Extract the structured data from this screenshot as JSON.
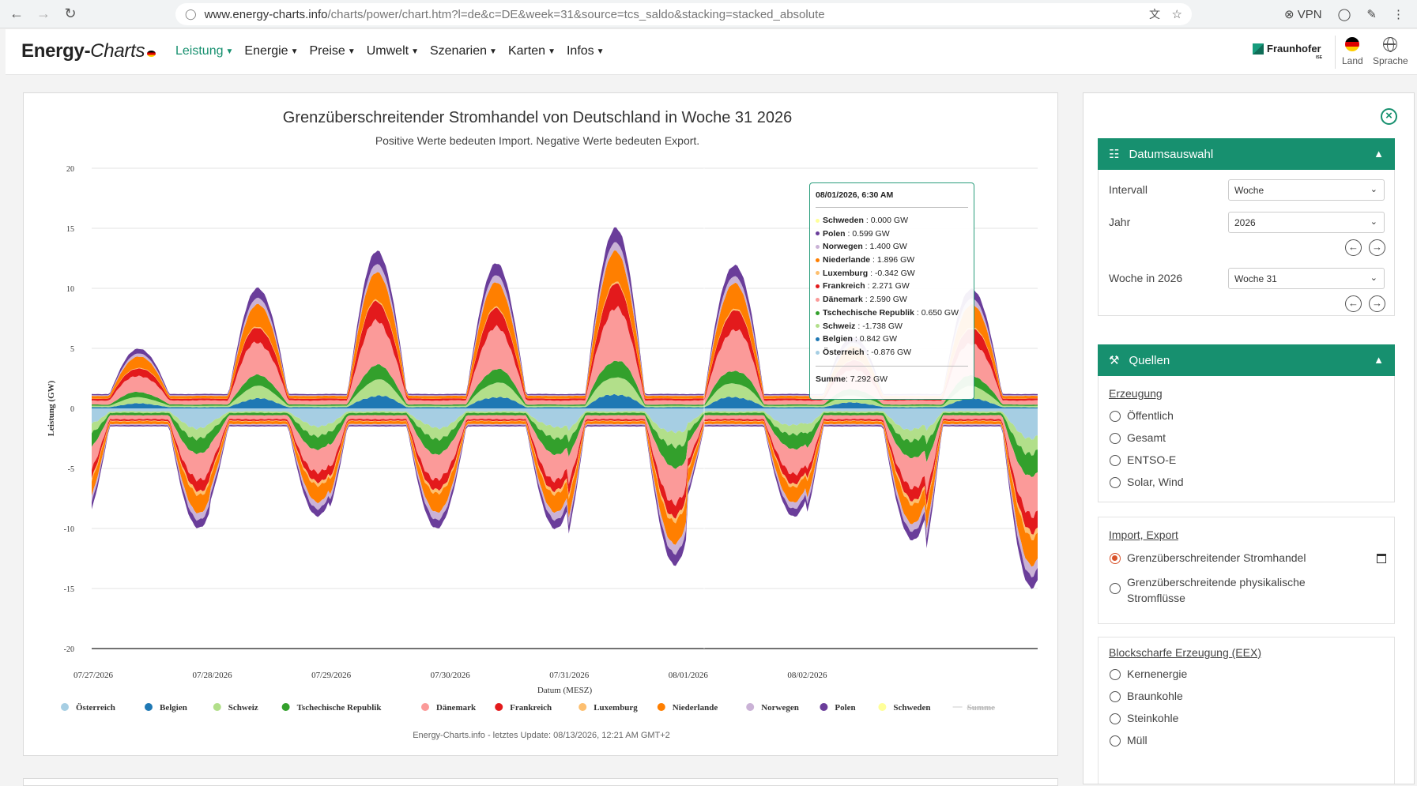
{
  "browser": {
    "url_host": "www.energy-charts.info",
    "url_path": "/charts/power/chart.htm?l=de&c=DE&week=31&source=tcs_saldo&stacking=stacked_absolute",
    "vpn_label": "VPN"
  },
  "header": {
    "logo_main": "Energy-",
    "logo_italic": "Charts",
    "menu": [
      {
        "label": "Leistung"
      },
      {
        "label": "Energie"
      },
      {
        "label": "Preise"
      },
      {
        "label": "Umwelt"
      },
      {
        "label": "Szenarien"
      },
      {
        "label": "Karten"
      },
      {
        "label": "Infos"
      }
    ],
    "fraunhofer": "Fraunhofer",
    "fraunhofer_sub": "ISE",
    "land_label": "Land",
    "sprache_label": "Sprache"
  },
  "chart": {
    "title": "Grenzüberschreitender Stromhandel von Deutschland in Woche 31 2026",
    "subtitle": "Positive Werte bedeuten Import. Negative Werte bedeuten Export.",
    "footer": "Energy-Charts.info - letztes Update: 08/13/2026, 12:21 AM GMT+2"
  },
  "chart_data": {
    "type": "area",
    "stacking": "stacked_absolute",
    "ylabel": "Leistung (GW)",
    "xlabel": "Datum (MESZ)",
    "ylim": [
      -20,
      20
    ],
    "yticks": [
      20,
      15,
      10,
      5,
      0,
      -5,
      -10,
      -15,
      -20
    ],
    "xticks": [
      "07/27/2026",
      "07/28/2026",
      "07/29/2026",
      "07/30/2026",
      "07/31/2026",
      "08/01/2026",
      "08/02/2026"
    ],
    "legend_position": "bottom",
    "series": [
      {
        "name": "Österreich",
        "color": "#a6cee3"
      },
      {
        "name": "Belgien",
        "color": "#1f78b4"
      },
      {
        "name": "Schweiz",
        "color": "#b2df8a"
      },
      {
        "name": "Tschechische Republik",
        "color": "#33a02c"
      },
      {
        "name": "Dänemark",
        "color": "#fb9a99"
      },
      {
        "name": "Frankreich",
        "color": "#e31a1c"
      },
      {
        "name": "Luxemburg",
        "color": "#fdbf6f"
      },
      {
        "name": "Niederlande",
        "color": "#ff7f00"
      },
      {
        "name": "Norwegen",
        "color": "#cab2d6"
      },
      {
        "name": "Polen",
        "color": "#6a3d9a"
      },
      {
        "name": "Schweden",
        "color": "#ffff99"
      },
      {
        "name": "Summe",
        "color": "#cccccc",
        "hidden": true
      }
    ],
    "daily_profile_gw": {
      "import_peak": [
        5,
        10,
        13,
        12,
        15,
        12,
        6,
        10
      ],
      "export_trough": [
        -10,
        -9,
        -10,
        -10,
        -13,
        -9,
        -11,
        -15
      ]
    },
    "tooltip": {
      "date": "08/01/2026, 6:30 AM",
      "rows": [
        {
          "name": "Schweden",
          "value": "0.000 GW",
          "color": "#ffff99"
        },
        {
          "name": "Polen",
          "value": "0.599 GW",
          "color": "#6a3d9a"
        },
        {
          "name": "Norwegen",
          "value": "1.400 GW",
          "color": "#cab2d6"
        },
        {
          "name": "Niederlande",
          "value": "1.896 GW",
          "color": "#ff7f00"
        },
        {
          "name": "Luxemburg",
          "value": "-0.342 GW",
          "color": "#fdbf6f"
        },
        {
          "name": "Frankreich",
          "value": "2.271 GW",
          "color": "#e31a1c"
        },
        {
          "name": "Dänemark",
          "value": "2.590 GW",
          "color": "#fb9a99"
        },
        {
          "name": "Tschechische Republik",
          "value": "0.650 GW",
          "color": "#33a02c"
        },
        {
          "name": "Schweiz",
          "value": "-1.738 GW",
          "color": "#b2df8a"
        },
        {
          "name": "Belgien",
          "value": "0.842 GW",
          "color": "#1f78b4"
        },
        {
          "name": "Österreich",
          "value": "-0.876 GW",
          "color": "#a6cee3"
        }
      ],
      "sum_label": "Summe",
      "sum_value": "7.292 GW"
    }
  },
  "side": {
    "datum": {
      "title": "Datumsauswahl",
      "intervall_label": "Intervall",
      "intervall_value": "Woche",
      "jahr_label": "Jahr",
      "jahr_value": "2026",
      "woche_label": "Woche in 2026",
      "woche_value": "Woche 31"
    },
    "quellen": {
      "title": "Quellen",
      "erzeugung_title": "Erzeugung",
      "erzeugung": [
        "Öffentlich",
        "Gesamt",
        "ENTSO-E",
        "Solar, Wind"
      ],
      "import_title": "Import, Export",
      "import_selected": "Grenzüberschreitender Stromhandel",
      "import_other_1": "Grenzüberschreitende physikalische",
      "import_other_2": "Stromflüsse",
      "eex_title": "Blockscharfe Erzeugung (EEX)",
      "eex": [
        "Kernenergie",
        "Braunkohle",
        "Steinkohle",
        "Müll"
      ]
    }
  },
  "colors": {
    "accent": "#17906f",
    "radio_on": "#d9532b"
  }
}
